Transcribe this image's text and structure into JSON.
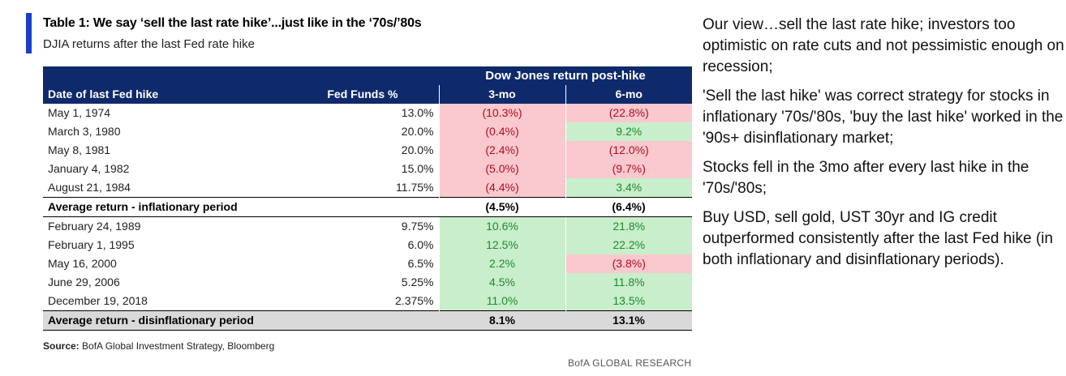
{
  "header": {
    "title": "Table 1: We say ‘sell the last rate hike’...just like in the ‘70s/’80s",
    "subtitle": "DJIA returns after the last Fed rate hike"
  },
  "table": {
    "band_title": "Dow Jones return post-hike",
    "columns": [
      "Date of last Fed hike",
      "Fed Funds %",
      "3-mo",
      "6-mo"
    ],
    "inflationary_rows": [
      {
        "date": "May 1, 1974",
        "ff": "13.0%",
        "m3": "(10.3%)",
        "m6": "(22.8%)"
      },
      {
        "date": "March 3, 1980",
        "ff": "20.0%",
        "m3": "(0.4%)",
        "m6": "9.2%"
      },
      {
        "date": "May 8, 1981",
        "ff": "20.0%",
        "m3": "(2.4%)",
        "m6": "(12.0%)"
      },
      {
        "date": "January 4, 1982",
        "ff": "15.0%",
        "m3": "(5.0%)",
        "m6": "(9.7%)"
      },
      {
        "date": "August 21, 1984",
        "ff": "11.75%",
        "m3": "(4.4%)",
        "m6": "3.4%"
      }
    ],
    "inflationary_avg": {
      "label": "Average return - inflationary period",
      "m3": "(4.5%)",
      "m6": "(6.4%)"
    },
    "disinflationary_rows": [
      {
        "date": "February 24, 1989",
        "ff": "9.75%",
        "m3": "10.6%",
        "m6": "21.8%"
      },
      {
        "date": "February 1, 1995",
        "ff": "6.0%",
        "m3": "12.5%",
        "m6": "22.2%"
      },
      {
        "date": "May 16, 2000",
        "ff": "6.5%",
        "m3": "2.2%",
        "m6": "(3.8%)"
      },
      {
        "date": "June 29, 2006",
        "ff": "5.25%",
        "m3": "4.5%",
        "m6": "11.8%"
      },
      {
        "date": "December 19, 2018",
        "ff": "2.375%",
        "m3": "11.0%",
        "m6": "13.5%"
      }
    ],
    "disinflationary_avg": {
      "label": "Average return - disinflationary period",
      "m3": "8.1%",
      "m6": "13.1%"
    },
    "colors": {
      "header_bg": "#0f2a6b",
      "neg_bg": "#f9c9cf",
      "neg_text": "#b40c1e",
      "pos_bg": "#c9eecb",
      "pos_text": "#1e8a2e"
    }
  },
  "source": {
    "label": "Source:",
    "text": "BofA Global Investment Strategy, Bloomberg"
  },
  "footer": "BofA GLOBAL RESEARCH",
  "commentary": [
    "Our view…sell the last rate hike; investors too optimistic on rate cuts and not pessimistic enough on recession;",
    "'Sell the last hike' was correct strategy for stocks in inflationary '70s/'80s, 'buy the last hike' worked in the '90s+ disinflationary market;",
    "Stocks fell in the 3mo after every last hike in the '70s/'80s;",
    "Buy USD, sell gold, UST 30yr and IG credit outperformed consistently after the last Fed hike (in both inflationary and disinflationary periods)."
  ]
}
